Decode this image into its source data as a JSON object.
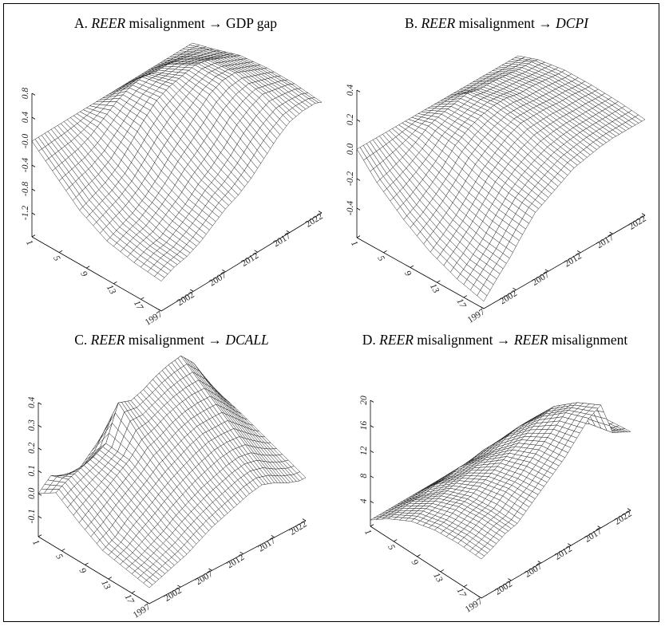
{
  "chart_data": [
    {
      "type": "surface",
      "panel": "A",
      "title_parts": [
        {
          "text": "A. ",
          "italic": false
        },
        {
          "text": "REER",
          "italic": true
        },
        {
          "text": " misalignment  →  GDP gap",
          "italic": false
        }
      ],
      "horizon_ticks": [
        1,
        5,
        9,
        13,
        17
      ],
      "year_ticks": [
        1997,
        2002,
        2007,
        2012,
        2017,
        2022
      ],
      "z_ticks": [
        "-1.2",
        "-0.8",
        "-0.4",
        "-0.0",
        "0.4",
        "0.8"
      ],
      "z_range": [
        -1.6,
        0.8
      ],
      "horizons": [
        1,
        4,
        8,
        12,
        16,
        20
      ],
      "years": [
        1997,
        1999,
        2001,
        2003,
        2005,
        2007,
        2009,
        2011,
        2013,
        2015,
        2017,
        2019,
        2021,
        2022
      ],
      "values": [
        [
          0,
          -0.3,
          -0.7,
          -0.95,
          -1.05,
          -1.1
        ],
        [
          0,
          -0.25,
          -0.6,
          -0.85,
          -0.95,
          -1.0
        ],
        [
          0,
          -0.2,
          -0.5,
          -0.75,
          -0.9,
          -0.95
        ],
        [
          0,
          -0.1,
          -0.35,
          -0.6,
          -0.75,
          -0.85
        ],
        [
          0,
          0.05,
          -0.1,
          -0.4,
          -0.6,
          -0.7
        ],
        [
          0,
          0.2,
          0.15,
          -0.15,
          -0.4,
          -0.55
        ],
        [
          0,
          0.3,
          0.35,
          0.05,
          -0.25,
          -0.45
        ],
        [
          0,
          0.35,
          0.45,
          0.25,
          -0.05,
          -0.3
        ],
        [
          0,
          0.3,
          0.5,
          0.45,
          0.2,
          -0.1
        ],
        [
          0,
          0.3,
          0.55,
          0.55,
          0.35,
          0.1
        ],
        [
          0,
          0.25,
          0.5,
          0.55,
          0.45,
          0.25
        ],
        [
          0,
          0.2,
          0.4,
          0.45,
          0.4,
          0.3
        ],
        [
          0,
          0.15,
          0.3,
          0.35,
          0.35,
          0.3
        ],
        [
          0,
          0.1,
          0.25,
          0.3,
          0.3,
          0.25
        ]
      ]
    },
    {
      "type": "surface",
      "panel": "B",
      "title_parts": [
        {
          "text": "B. ",
          "italic": false
        },
        {
          "text": "REER",
          "italic": true
        },
        {
          "text": " misalignment  →  ",
          "italic": false
        },
        {
          "text": "DCPI",
          "italic": true
        }
      ],
      "horizon_ticks": [
        1,
        5,
        9,
        13,
        17
      ],
      "year_ticks": [
        1997,
        2002,
        2007,
        2012,
        2017,
        2022
      ],
      "z_ticks": [
        "-0.4",
        "-0.2",
        "0.0",
        "0.2",
        "0.4"
      ],
      "z_range": [
        -0.6,
        0.4
      ],
      "horizons": [
        1,
        4,
        8,
        12,
        16,
        20
      ],
      "years": [
        1997,
        1999,
        2001,
        2003,
        2005,
        2007,
        2009,
        2011,
        2013,
        2015,
        2017,
        2019,
        2021,
        2022
      ],
      "values": [
        [
          0,
          -0.15,
          -0.3,
          -0.42,
          -0.5,
          -0.55
        ],
        [
          0,
          -0.12,
          -0.25,
          -0.35,
          -0.42,
          -0.45
        ],
        [
          0,
          -0.08,
          -0.18,
          -0.27,
          -0.33,
          -0.36
        ],
        [
          0,
          -0.03,
          -0.1,
          -0.17,
          -0.22,
          -0.25
        ],
        [
          0,
          0.03,
          0.0,
          -0.07,
          -0.12,
          -0.15
        ],
        [
          0,
          0.06,
          0.06,
          0.0,
          -0.05,
          -0.1
        ],
        [
          0,
          0.08,
          0.1,
          0.06,
          0.0,
          -0.05
        ],
        [
          0,
          0.1,
          0.12,
          0.1,
          0.04,
          0.0
        ],
        [
          0,
          0.08,
          0.12,
          0.1,
          0.06,
          0.02
        ],
        [
          0,
          0.08,
          0.1,
          0.1,
          0.07,
          0.04
        ],
        [
          0,
          0.07,
          0.1,
          0.09,
          0.07,
          0.05
        ],
        [
          0,
          0.06,
          0.09,
          0.09,
          0.07,
          0.05
        ],
        [
          0,
          0.06,
          0.08,
          0.08,
          0.07,
          0.05
        ],
        [
          0,
          0.05,
          0.08,
          0.08,
          0.07,
          0.05
        ]
      ]
    },
    {
      "type": "surface",
      "panel": "C",
      "title_parts": [
        {
          "text": "C. ",
          "italic": false
        },
        {
          "text": "REER",
          "italic": true
        },
        {
          "text": " misalignment → ",
          "italic": false
        },
        {
          "text": "DCALL",
          "italic": true
        }
      ],
      "horizon_ticks": [
        1,
        5,
        9,
        13,
        17
      ],
      "year_ticks": [
        1997,
        2002,
        2007,
        2012,
        2017,
        2022
      ],
      "z_ticks": [
        "-0.1",
        "0.0",
        "0.1",
        "0.2",
        "0.3",
        "0.4"
      ],
      "z_range": [
        -0.19,
        0.4
      ],
      "horizons": [
        1,
        4,
        8,
        12,
        16,
        20
      ],
      "years": [
        1997,
        1999,
        2001,
        2003,
        2005,
        2007,
        2009,
        2011,
        2013,
        2015,
        2017,
        2019,
        2021,
        2022
      ],
      "values": [
        [
          0,
          0.05,
          -0.02,
          -0.08,
          -0.1,
          -0.12
        ],
        [
          0.05,
          0.08,
          0.02,
          -0.05,
          -0.08,
          -0.1
        ],
        [
          0.02,
          0.1,
          0.06,
          0.0,
          -0.05,
          -0.08
        ],
        [
          0.0,
          0.12,
          0.1,
          0.04,
          -0.02,
          -0.06
        ],
        [
          0.05,
          0.15,
          0.14,
          0.08,
          0.02,
          -0.03
        ],
        [
          0.1,
          0.3,
          0.2,
          0.12,
          0.05,
          0.0
        ],
        [
          0.15,
          0.28,
          0.22,
          0.15,
          0.08,
          0.02
        ],
        [
          0.12,
          0.3,
          0.25,
          0.18,
          0.1,
          0.04
        ],
        [
          0.15,
          0.33,
          0.27,
          0.2,
          0.12,
          0.06
        ],
        [
          0.2,
          0.35,
          0.28,
          0.2,
          0.13,
          0.07
        ],
        [
          0.25,
          0.36,
          0.28,
          0.2,
          0.12,
          0.05
        ],
        [
          0.2,
          0.3,
          0.22,
          0.15,
          0.08,
          0.02
        ],
        [
          0.12,
          0.2,
          0.15,
          0.1,
          0.05,
          0.0
        ],
        [
          0.1,
          0.15,
          0.12,
          0.08,
          0.04,
          0.0
        ]
      ]
    },
    {
      "type": "surface",
      "panel": "D",
      "title_parts": [
        {
          "text": "D. ",
          "italic": false
        },
        {
          "text": "REER",
          "italic": true
        },
        {
          "text": " misalignment → ",
          "italic": false
        },
        {
          "text": "REER",
          "italic": true
        },
        {
          "text": " misalignment",
          "italic": false
        }
      ],
      "horizon_ticks": [
        1,
        5,
        9,
        13,
        17
      ],
      "year_ticks": [
        1997,
        2002,
        2007,
        2012,
        2017,
        2022
      ],
      "z_ticks": [
        "4",
        "8",
        "12",
        "16",
        "20"
      ],
      "z_range": [
        0,
        20
      ],
      "horizons": [
        1,
        4,
        8,
        12,
        16,
        20
      ],
      "years": [
        1997,
        1999,
        2001,
        2003,
        2005,
        2007,
        2009,
        2011,
        2013,
        2015,
        2017,
        2019,
        2021,
        2022
      ],
      "values": [
        [
          1,
          3,
          5,
          6,
          6.3,
          6.2
        ],
        [
          1,
          3.2,
          5.5,
          6.5,
          7,
          7
        ],
        [
          1,
          3.5,
          6,
          7.5,
          8,
          8
        ],
        [
          1,
          3.5,
          6.5,
          8,
          8.5,
          8.5
        ],
        [
          1,
          4,
          7,
          9,
          10,
          10
        ],
        [
          1,
          4,
          7.5,
          10,
          11,
          11.5
        ],
        [
          1,
          4.5,
          8,
          11,
          12.5,
          13
        ],
        [
          1,
          4.5,
          8.5,
          12,
          14,
          14.5
        ],
        [
          1,
          5,
          9.5,
          13,
          15.5,
          16.5
        ],
        [
          1,
          5,
          10,
          14,
          17,
          18.5
        ],
        [
          1,
          5,
          10,
          14.5,
          17.5,
          19.5
        ],
        [
          1,
          4,
          8,
          11,
          13,
          14
        ],
        [
          1,
          4,
          7.5,
          10,
          12,
          13
        ],
        [
          1,
          4,
          7.5,
          10,
          12,
          12.5
        ]
      ]
    }
  ]
}
